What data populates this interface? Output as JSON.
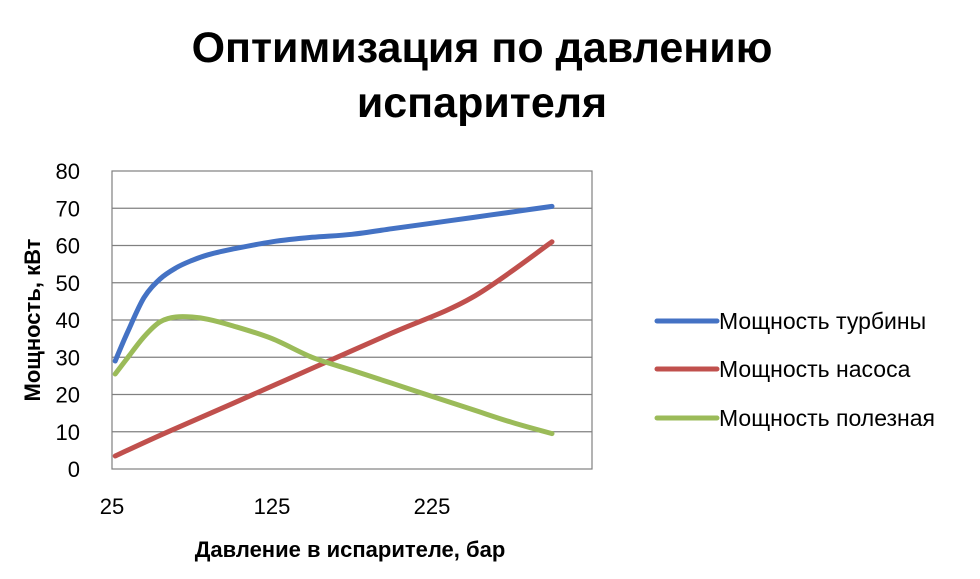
{
  "chart_data": {
    "type": "line",
    "title_lines": [
      "Оптимизация по давлению",
      "испарителя"
    ],
    "xlabel": "Давление в испарителе, бар",
    "ylabel": "Мощность, кВт",
    "xlim": [
      25,
      325
    ],
    "ylim": [
      0,
      80
    ],
    "xticks": [
      "25",
      "125",
      "225"
    ],
    "xtick_values": [
      25,
      125,
      225
    ],
    "yticks": [
      "0",
      "10",
      "20",
      "30",
      "40",
      "50",
      "60",
      "70",
      "80"
    ],
    "ytick_values": [
      0,
      10,
      20,
      30,
      40,
      50,
      60,
      70,
      80
    ],
    "grid": "horizontal",
    "legend_position": "right",
    "series": [
      {
        "name": "Мощность турбины",
        "color": "#4472C4",
        "x": [
          27,
          35,
          45,
          55,
          65,
          75,
          85,
          100,
          125,
          150,
          175,
          200,
          225,
          250,
          275,
          300
        ],
        "y": [
          29,
          37,
          46,
          51,
          54,
          56,
          57.5,
          59,
          61,
          62.2,
          63,
          64.5,
          66,
          67.5,
          69,
          70.5
        ]
      },
      {
        "name": "Мощность насоса",
        "color": "#C0504D",
        "x": [
          27,
          60,
          100,
          150,
          200,
          250,
          300
        ],
        "y": [
          3.5,
          10,
          17.5,
          27,
          36.5,
          46,
          61
        ]
      },
      {
        "name": "Мощность полезная",
        "color": "#9BBB59",
        "x": [
          27,
          35,
          45,
          55,
          65,
          75,
          85,
          100,
          125,
          150,
          175,
          200,
          225,
          250,
          275,
          300
        ],
        "y": [
          25.5,
          30,
          35.5,
          39.5,
          40.8,
          40.8,
          40.2,
          38.5,
          35,
          30,
          26.5,
          23,
          19.5,
          16,
          12.5,
          9.5
        ]
      }
    ]
  }
}
